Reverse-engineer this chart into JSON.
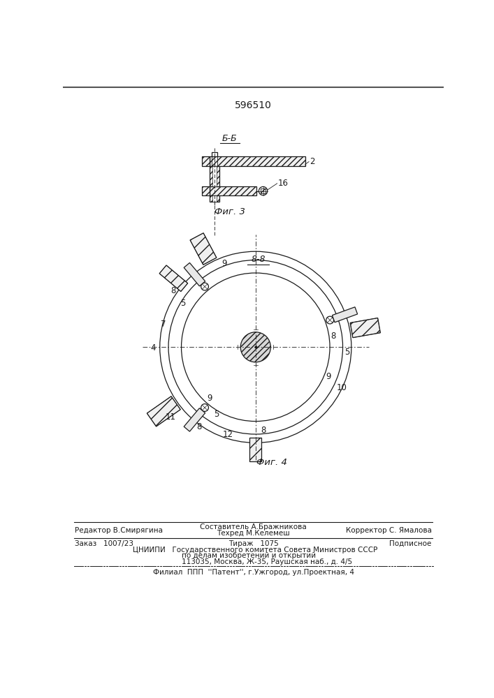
{
  "patent_number": "596510",
  "fig3_label": "Фиг. 3",
  "fig4_label": "Фиг. 4",
  "section_bb_label": "Б-Б",
  "section_88_label": "8-8",
  "editor_line": "Редактор В.Смирягина",
  "compiler_label": "Составитель А.Бражникова",
  "techred_label": "Техред М.Келемеш",
  "corrector_label": "Корректор С. Ямалова",
  "order_text": "Заказ   1007/23",
  "tirazh_text": "Тираж   1075",
  "podpisnoe_text": "Подписное",
  "tsniip_text": "ЦНИИПИ   Государственного комитета Совета Министров СССР",
  "addr1_text": "по делам изобретений и открытий",
  "addr2_text": "113035, Москва, Ж-35, Раушская наб., д. 4/5",
  "filial_text": "Филиал  ППП  ''Патент'', г.Ужгород, ул.Проектная, 4",
  "bg_color": "#ffffff",
  "line_color": "#1a1a1a"
}
